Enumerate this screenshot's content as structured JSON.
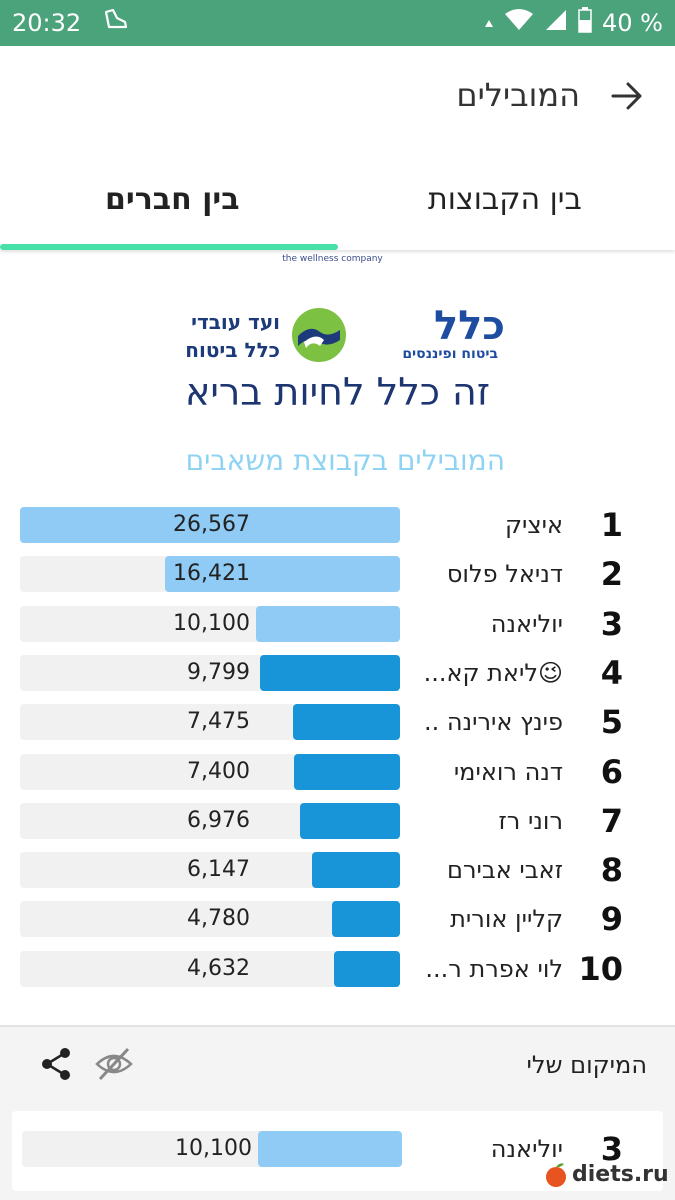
{
  "status_bar": {
    "time": "20:32",
    "battery": "40 %",
    "icons": [
      "shoe-notification-icon",
      "wifi-icon",
      "signal-icon",
      "battery-icon"
    ]
  },
  "header": {
    "title": "המובילים",
    "back_icon": "arrow-right-icon"
  },
  "tabs": [
    {
      "label": "בין חברים",
      "active": true
    },
    {
      "label": "בין הקבוצות",
      "active": false
    }
  ],
  "partner_banner": {
    "tagline": "the wellness company"
  },
  "banner": {
    "workers_line1": "ועד עובדי",
    "workers_line2": "כלל ביטוח",
    "logo_text": "כלל",
    "logo_sub": "ביטוח ופיננסים",
    "slogan": "זה כלל לחיות בריא"
  },
  "section_title": "המובילים בקבוצת משאבים",
  "leaderboard": {
    "max": 26567,
    "rows": [
      {
        "rank": "1",
        "name": "איציק",
        "value_label": "26,567",
        "value": 26567,
        "color": "#8fcbf5"
      },
      {
        "rank": "2",
        "name": "דניאל פלוס",
        "value_label": "16,421",
        "value": 16421,
        "color": "#8fcbf5"
      },
      {
        "rank": "3",
        "name": "יוליאנה",
        "value_label": "10,100",
        "value": 10100,
        "color": "#8fcbf5"
      },
      {
        "rank": "4",
        "name": "😉ליאת קא...",
        "value_label": "9,799",
        "value": 9799,
        "color": "#1895d9"
      },
      {
        "rank": "5",
        "name": "פינץ אירינה ..",
        "value_label": "7,475",
        "value": 7475,
        "color": "#1895d9"
      },
      {
        "rank": "6",
        "name": "דנה רואימי",
        "value_label": "7,400",
        "value": 7400,
        "color": "#1895d9"
      },
      {
        "rank": "7",
        "name": "רוני רז",
        "value_label": "6,976",
        "value": 6976,
        "color": "#1895d9"
      },
      {
        "rank": "8",
        "name": "זאבי אבירם",
        "value_label": "6,147",
        "value": 6147,
        "color": "#1895d9"
      },
      {
        "rank": "9",
        "name": "קליין אורית",
        "value_label": "4,780",
        "value": 4780,
        "color": "#1895d9"
      },
      {
        "rank": "10",
        "name": "לוי אפרת ר...",
        "value_label": "4,632",
        "value": 4632,
        "color": "#1895d9"
      }
    ]
  },
  "my_position": {
    "title": "המיקום שלי",
    "rank": "3",
    "name": "יוליאנה",
    "value_label": "10,100",
    "value": 10100,
    "color": "#8fcbf5"
  },
  "watermark": {
    "text": "diets.ru"
  }
}
